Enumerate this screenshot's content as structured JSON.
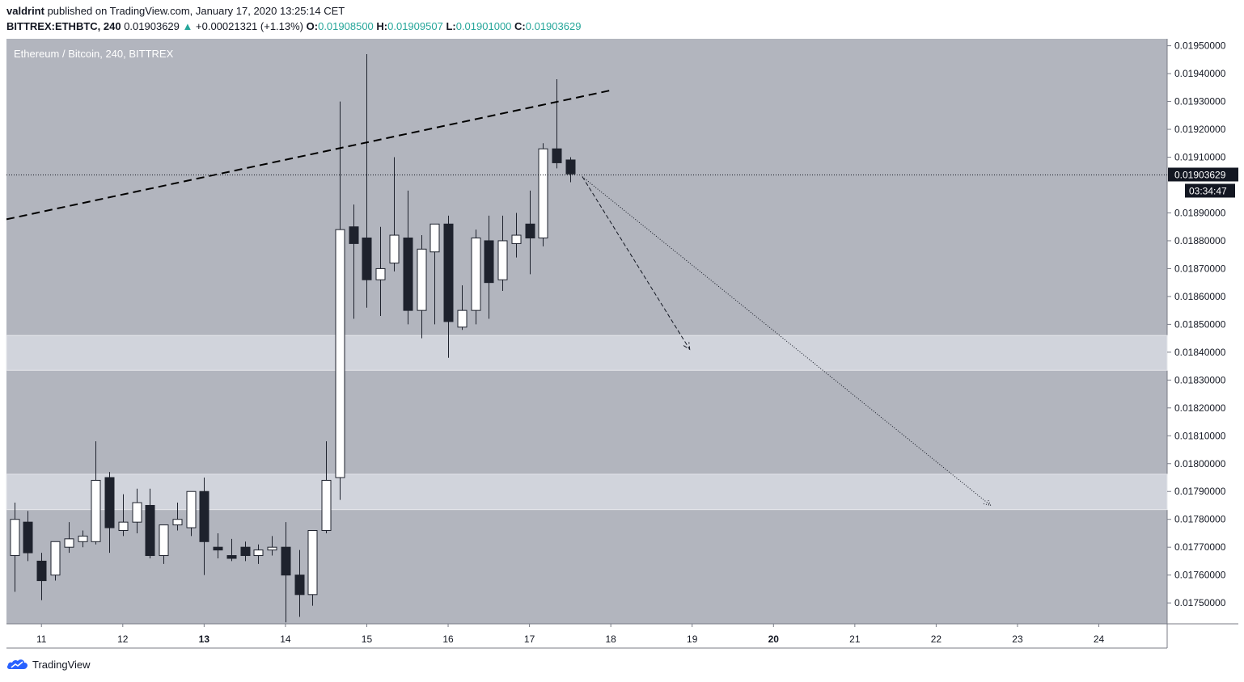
{
  "header": {
    "author": "valdrint",
    "published_text": " published on TradingView.com, January 17, 2020 13:25:14 CET",
    "symbol": "BITTREX:ETHBTC, 240",
    "last": "0.01903629",
    "change_arrow": "▲",
    "change": "+0.00021321 (+1.13%)",
    "o_label": "O:",
    "o": "0.01908500",
    "h_label": "H:",
    "h": "0.01909507",
    "l_label": "L:",
    "l": "0.01901000",
    "c_label": "C:",
    "c": "0.01903629"
  },
  "branding": {
    "name": "TradingView"
  },
  "colors": {
    "background": "#b2b5be",
    "zone": "#d1d4dc",
    "up_body": "#ffffff",
    "down_body": "#1e222d",
    "wick": "#1e222d",
    "price_tag": "#131722"
  },
  "chart_data": {
    "type": "candlestick",
    "title": "Ethereum / Bitcoin, 240, BITTREX",
    "ylim": [
      0.017425,
      0.019525
    ],
    "xlim": [
      10.57,
      24.84
    ],
    "x_ticks": [
      "11",
      "12",
      "13",
      "14",
      "15",
      "16",
      "17",
      "18",
      "19",
      "20",
      "21",
      "22",
      "23",
      "24"
    ],
    "x_tick_values": [
      11,
      12,
      13,
      14,
      15,
      16,
      17,
      18,
      19,
      20,
      21,
      22,
      23,
      24
    ],
    "x_bold_ticks": [
      "13",
      "20"
    ],
    "y_ticks": [
      "0.01950000",
      "0.01940000",
      "0.01930000",
      "0.01920000",
      "0.01910000",
      "0.01890000",
      "0.01880000",
      "0.01870000",
      "0.01860000",
      "0.01850000",
      "0.01840000",
      "0.01830000",
      "0.01820000",
      "0.01810000",
      "0.01800000",
      "0.01790000",
      "0.01780000",
      "0.01770000",
      "0.01760000",
      "0.01750000"
    ],
    "y_tick_values": [
      0.0195,
      0.0194,
      0.0193,
      0.0192,
      0.0191,
      0.0189,
      0.0188,
      0.0187,
      0.0186,
      0.0185,
      0.0184,
      0.0183,
      0.0182,
      0.0181,
      0.018,
      0.0179,
      0.0178,
      0.0177,
      0.0176,
      0.0175
    ],
    "last_price": 0.01903629,
    "last_price_label": "0.01903629",
    "countdown": "03:34:47",
    "candles": [
      {
        "t": 10.667,
        "o": 0.01767,
        "h": 0.01786,
        "l": 0.01754,
        "c": 0.0178
      },
      {
        "t": 10.833,
        "o": 0.01779,
        "h": 0.01783,
        "l": 0.01765,
        "c": 0.01768
      },
      {
        "t": 11.0,
        "o": 0.01765,
        "h": 0.01768,
        "l": 0.01751,
        "c": 0.01758
      },
      {
        "t": 11.167,
        "o": 0.0176,
        "h": 0.01772,
        "l": 0.01758,
        "c": 0.01772
      },
      {
        "t": 11.333,
        "o": 0.0177,
        "h": 0.01779,
        "l": 0.01768,
        "c": 0.01773
      },
      {
        "t": 11.5,
        "o": 0.01772,
        "h": 0.01776,
        "l": 0.0177,
        "c": 0.01774
      },
      {
        "t": 11.667,
        "o": 0.01772,
        "h": 0.01808,
        "l": 0.01771,
        "c": 0.01794
      },
      {
        "t": 11.833,
        "o": 0.01795,
        "h": 0.01797,
        "l": 0.01768,
        "c": 0.01777
      },
      {
        "t": 12.0,
        "o": 0.01776,
        "h": 0.01789,
        "l": 0.01774,
        "c": 0.01779
      },
      {
        "t": 12.167,
        "o": 0.01779,
        "h": 0.01791,
        "l": 0.01775,
        "c": 0.01786
      },
      {
        "t": 12.333,
        "o": 0.01785,
        "h": 0.01791,
        "l": 0.01766,
        "c": 0.01767
      },
      {
        "t": 12.5,
        "o": 0.01767,
        "h": 0.01778,
        "l": 0.01764,
        "c": 0.01778
      },
      {
        "t": 12.667,
        "o": 0.01778,
        "h": 0.01786,
        "l": 0.01776,
        "c": 0.0178
      },
      {
        "t": 12.833,
        "o": 0.01777,
        "h": 0.0179,
        "l": 0.01774,
        "c": 0.0179
      },
      {
        "t": 13.0,
        "o": 0.0179,
        "h": 0.01795,
        "l": 0.0176,
        "c": 0.01772
      },
      {
        "t": 13.167,
        "o": 0.0177,
        "h": 0.01775,
        "l": 0.01766,
        "c": 0.01769
      },
      {
        "t": 13.333,
        "o": 0.01767,
        "h": 0.01773,
        "l": 0.01765,
        "c": 0.01766
      },
      {
        "t": 13.5,
        "o": 0.0177,
        "h": 0.01772,
        "l": 0.01765,
        "c": 0.01767
      },
      {
        "t": 13.667,
        "o": 0.01767,
        "h": 0.01771,
        "l": 0.01764,
        "c": 0.01769
      },
      {
        "t": 13.833,
        "o": 0.01769,
        "h": 0.01774,
        "l": 0.01767,
        "c": 0.0177
      },
      {
        "t": 14.0,
        "o": 0.0177,
        "h": 0.01779,
        "l": 0.01743,
        "c": 0.0176
      },
      {
        "t": 14.167,
        "o": 0.0176,
        "h": 0.01769,
        "l": 0.01745,
        "c": 0.01753
      },
      {
        "t": 14.333,
        "o": 0.01753,
        "h": 0.01776,
        "l": 0.01749,
        "c": 0.01776
      },
      {
        "t": 14.5,
        "o": 0.01776,
        "h": 0.01808,
        "l": 0.01775,
        "c": 0.01794
      },
      {
        "t": 14.667,
        "o": 0.01795,
        "h": 0.0193,
        "l": 0.01787,
        "c": 0.01884
      },
      {
        "t": 14.833,
        "o": 0.01885,
        "h": 0.01893,
        "l": 0.01852,
        "c": 0.01879
      },
      {
        "t": 15.0,
        "o": 0.01881,
        "h": 0.01947,
        "l": 0.01856,
        "c": 0.01866
      },
      {
        "t": 15.167,
        "o": 0.01866,
        "h": 0.01885,
        "l": 0.01853,
        "c": 0.0187
      },
      {
        "t": 15.333,
        "o": 0.01872,
        "h": 0.0191,
        "l": 0.01869,
        "c": 0.01882
      },
      {
        "t": 15.5,
        "o": 0.01881,
        "h": 0.01898,
        "l": 0.0185,
        "c": 0.01855
      },
      {
        "t": 15.667,
        "o": 0.01855,
        "h": 0.01882,
        "l": 0.01845,
        "c": 0.01877
      },
      {
        "t": 15.833,
        "o": 0.01876,
        "h": 0.01886,
        "l": 0.0185,
        "c": 0.01886
      },
      {
        "t": 16.0,
        "o": 0.01886,
        "h": 0.01889,
        "l": 0.01838,
        "c": 0.01851
      },
      {
        "t": 16.167,
        "o": 0.01849,
        "h": 0.01864,
        "l": 0.01848,
        "c": 0.01855
      },
      {
        "t": 16.333,
        "o": 0.01855,
        "h": 0.01884,
        "l": 0.0185,
        "c": 0.01881
      },
      {
        "t": 16.5,
        "o": 0.0188,
        "h": 0.01889,
        "l": 0.01852,
        "c": 0.01865
      },
      {
        "t": 16.667,
        "o": 0.01866,
        "h": 0.01889,
        "l": 0.01862,
        "c": 0.0188
      },
      {
        "t": 16.833,
        "o": 0.01879,
        "h": 0.0189,
        "l": 0.01874,
        "c": 0.01882
      },
      {
        "t": 17.0,
        "o": 0.01886,
        "h": 0.01898,
        "l": 0.01868,
        "c": 0.01881
      },
      {
        "t": 17.167,
        "o": 0.01881,
        "h": 0.01915,
        "l": 0.01878,
        "c": 0.01913
      },
      {
        "t": 17.333,
        "o": 0.01913,
        "h": 0.01938,
        "l": 0.01906,
        "c": 0.01908
      },
      {
        "t": 17.5,
        "o": 0.01909,
        "h": 0.0191,
        "l": 0.01901,
        "c": 0.01904
      }
    ],
    "zones": [
      {
        "low": 0.018335,
        "high": 0.01846
      },
      {
        "low": 0.017835,
        "high": 0.017962
      }
    ],
    "trendline": {
      "x1": 10.57,
      "y1": 0.018877,
      "x2": 18.0,
      "y2": 0.01934
    },
    "arrow_dashed": {
      "x1": 17.65,
      "y1": 0.01903,
      "x2": 18.97,
      "y2": 0.01841
    },
    "arrow_dotted": {
      "x1": 17.65,
      "y1": 0.01903,
      "x2": 22.67,
      "y2": 0.01785
    }
  }
}
